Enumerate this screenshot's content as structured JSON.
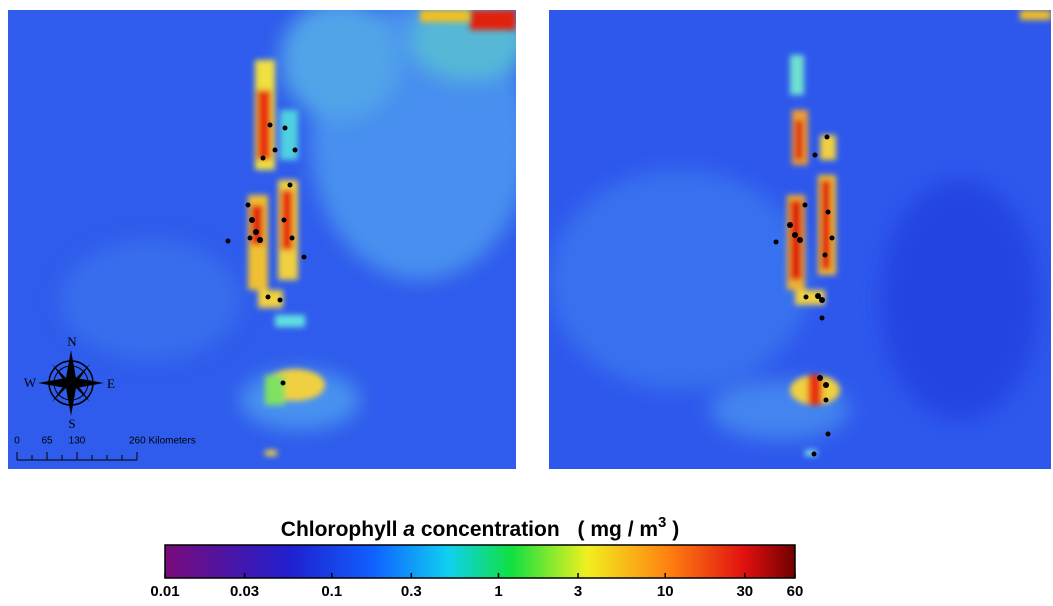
{
  "map": {
    "compass": {
      "n": "N",
      "e": "E",
      "s": "S",
      "w": "W"
    },
    "scale_bar": {
      "labels": [
        "0",
        "65",
        "130",
        "260 Kilometers"
      ]
    }
  },
  "colorbar": {
    "title": {
      "name": "Chlorophyll",
      "symbol": "a",
      "rest": "concentration",
      "unit": "( mg / m",
      "exponent": "3",
      "close": " )"
    },
    "scale": "log",
    "lim": [
      0.01,
      60
    ],
    "ticks": [
      0.01,
      0.03,
      0.1,
      0.3,
      1,
      3,
      10,
      30,
      60
    ]
  }
}
